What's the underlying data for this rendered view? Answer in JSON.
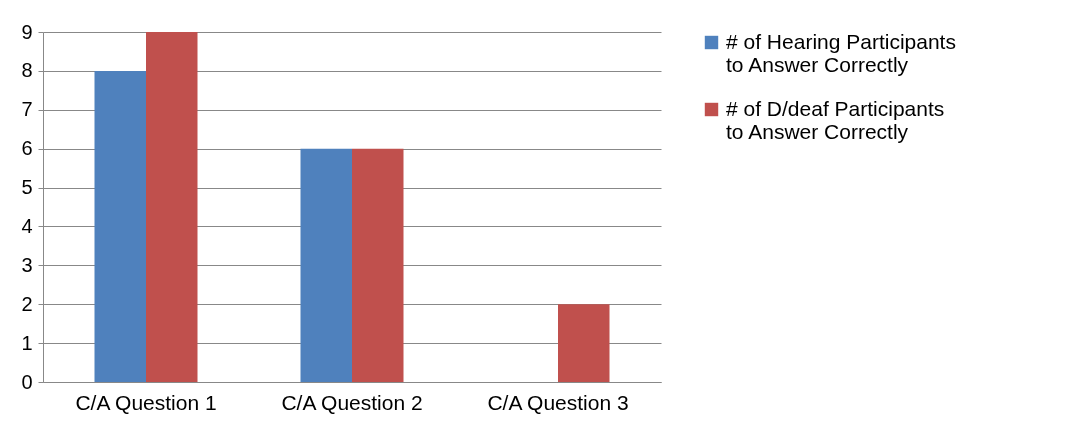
{
  "chart_data": {
    "type": "bar",
    "categories": [
      "C/A Question 1",
      "C/A Question 2",
      "C/A Question 3"
    ],
    "series": [
      {
        "name": "# of Hearing Participants to Answer Correctly",
        "color": "#4f81bd",
        "values": [
          8,
          6,
          0
        ]
      },
      {
        "name": "# of D/deaf Participants to Answer Correctly",
        "color": "#c0504d",
        "values": [
          9,
          6,
          2
        ]
      }
    ],
    "ylim": [
      0,
      9
    ],
    "yticks": [
      0,
      1,
      2,
      3,
      4,
      5,
      6,
      7,
      8,
      9
    ],
    "grid": "y",
    "legend": "right"
  }
}
